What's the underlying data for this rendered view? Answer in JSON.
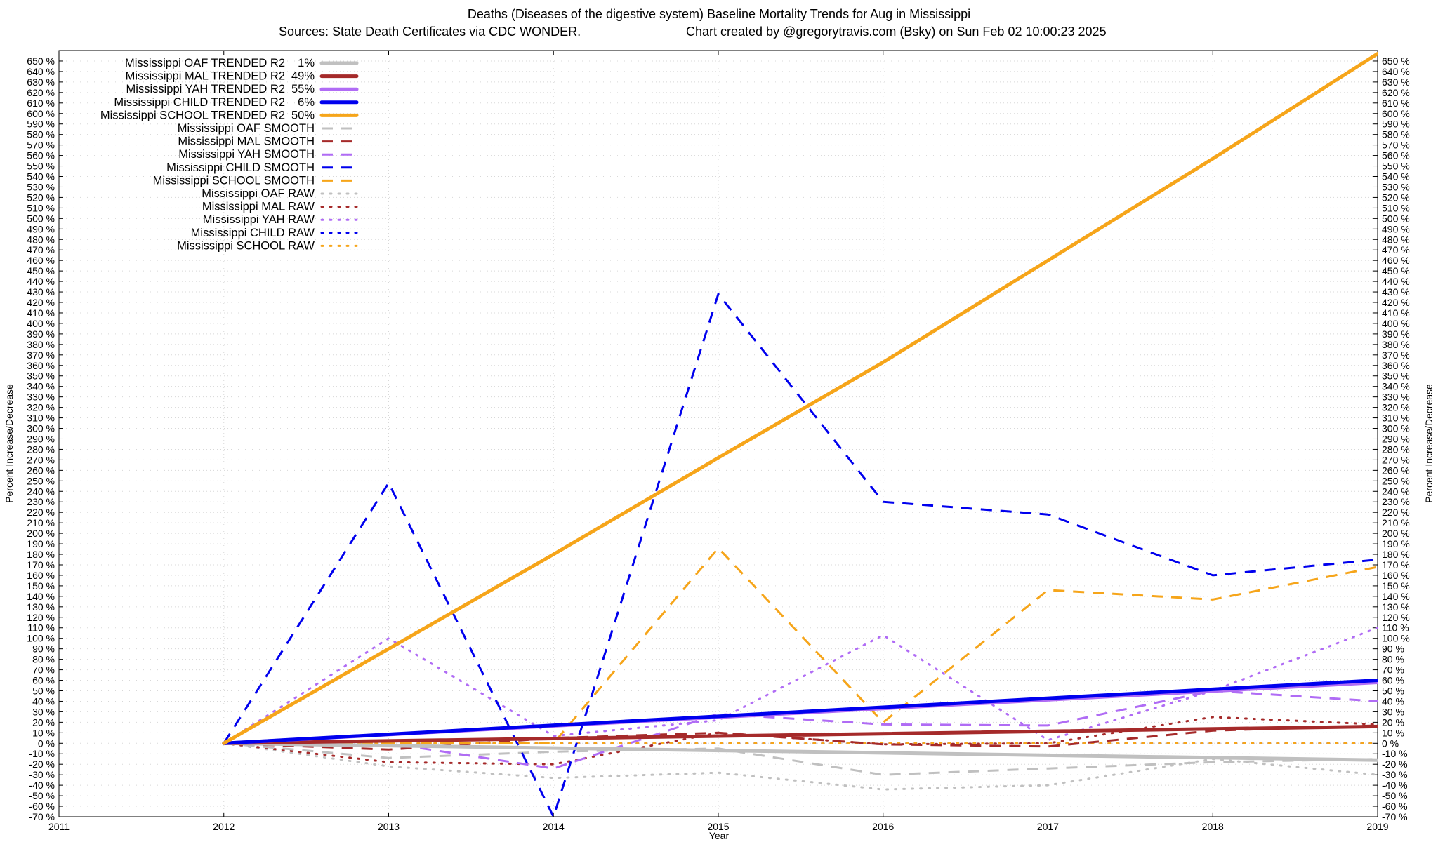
{
  "title_line1": "Deaths (Diseases of the digestive system)  Baseline Mortality Trends for Aug in Mississippi",
  "title_line2_left": "Sources: State Death Certificates via CDC WONDER.",
  "title_line2_right": "Chart created by @gregorytravis.com (Bsky) on Sun Feb 02 10:00:23 2025",
  "chart_data": {
    "type": "line",
    "xlabel": "Year",
    "ylabel_left": "Percent Increase/Decrease",
    "ylabel_right": "Percent Increase/Decrease",
    "xlim": [
      2011,
      2019
    ],
    "ylim": [
      -70,
      660
    ],
    "x_ticks": [
      "2011",
      "2012",
      "2013",
      "2014",
      "2015",
      "2016",
      "2017",
      "2018",
      "2019"
    ],
    "y_ticks": [
      "650 %",
      "640 %",
      "630 %",
      "620 %",
      "610 %",
      "600 %",
      "590 %",
      "580 %",
      "570 %",
      "560 %",
      "550 %",
      "540 %",
      "530 %",
      "520 %",
      "510 %",
      "500 %",
      "490 %",
      "480 %",
      "470 %",
      "460 %",
      "450 %",
      "440 %",
      "430 %",
      "420 %",
      "410 %",
      "400 %",
      "390 %",
      "380 %",
      "370 %",
      "360 %",
      "350 %",
      "340 %",
      "330 %",
      "320 %",
      "310 %",
      "300 %",
      "290 %",
      "280 %",
      "270 %",
      "260 %",
      "250 %",
      "240 %",
      "230 %",
      "220 %",
      "210 %",
      "200 %",
      "190 %",
      "180 %",
      "170 %",
      "160 %",
      "150 %",
      "140 %",
      "130 %",
      "120 %",
      "110 %",
      "100 %",
      "90 %",
      "80 %",
      "70 %",
      "60 %",
      "50 %",
      "40 %",
      "30 %",
      "20 %",
      "10 %",
      "0 %",
      "-10 %",
      "-20 %",
      "-30 %",
      "-40 %",
      "-50 %",
      "-60 %",
      "-70 %"
    ],
    "grid": true,
    "legend_position": "top-left",
    "colors": {
      "OAF": "#c0c0c0",
      "MAL": "#a52a2a",
      "YAH": "#b06cf5",
      "CHILD": "#0000ee",
      "SCHOOL": "#f6a51a"
    },
    "series": [
      {
        "name": "Mississippi OAF TRENDED R2",
        "r2": "1%",
        "group": "OAF",
        "style": "solid",
        "x": [
          2012,
          2019
        ],
        "y": [
          0,
          -16
        ]
      },
      {
        "name": "Mississippi MAL TRENDED R2",
        "r2": "49%",
        "group": "MAL",
        "style": "solid",
        "x": [
          2012,
          2019
        ],
        "y": [
          0,
          16
        ]
      },
      {
        "name": "Mississippi YAH TRENDED R2",
        "r2": "55%",
        "group": "YAH",
        "style": "solid",
        "x": [
          2012,
          2019
        ],
        "y": [
          0,
          58
        ]
      },
      {
        "name": "Mississippi CHILD TRENDED R2",
        "r2": "6%",
        "group": "CHILD",
        "style": "solid",
        "x": [
          2012,
          2019
        ],
        "y": [
          0,
          60
        ]
      },
      {
        "name": "Mississippi SCHOOL TRENDED R2",
        "r2": "50%",
        "group": "SCHOOL",
        "style": "solid",
        "x": [
          2012,
          2013,
          2014,
          2015,
          2016,
          2017,
          2018,
          2019
        ],
        "y": [
          0,
          90,
          180,
          272,
          363,
          460,
          557,
          657
        ]
      },
      {
        "name": "Mississippi OAF SMOOTH",
        "group": "OAF",
        "style": "dashed",
        "x": [
          2012,
          2013,
          2014,
          2015,
          2016,
          2017,
          2018,
          2019
        ],
        "y": [
          0,
          -14,
          -8,
          -5,
          -30,
          -24,
          -18,
          -15
        ]
      },
      {
        "name": "Mississippi MAL SMOOTH",
        "group": "MAL",
        "style": "dashed",
        "x": [
          2012,
          2013,
          2014,
          2015,
          2016,
          2017,
          2018,
          2019
        ],
        "y": [
          0,
          -6,
          5,
          10,
          -1,
          -3,
          12,
          17
        ]
      },
      {
        "name": "Mississippi YAH SMOOTH",
        "group": "YAH",
        "style": "dashed",
        "x": [
          2012,
          2013,
          2014,
          2015,
          2016,
          2017,
          2018,
          2019
        ],
        "y": [
          0,
          0,
          -24,
          28,
          18,
          17,
          50,
          40
        ]
      },
      {
        "name": "Mississippi CHILD SMOOTH",
        "group": "CHILD",
        "style": "dashed",
        "x": [
          2012,
          2013,
          2014,
          2015,
          2016,
          2017,
          2018,
          2019
        ],
        "y": [
          0,
          248,
          -70,
          428,
          230,
          218,
          160,
          175
        ]
      },
      {
        "name": "Mississippi SCHOOL SMOOTH",
        "group": "SCHOOL",
        "style": "dashed",
        "x": [
          2012,
          2013,
          2014,
          2015,
          2016,
          2017,
          2018,
          2019
        ],
        "y": [
          0,
          0,
          0,
          186,
          20,
          146,
          137,
          168
        ]
      },
      {
        "name": "Mississippi OAF RAW",
        "group": "OAF",
        "style": "dotted",
        "x": [
          2012,
          2013,
          2014,
          2015,
          2016,
          2017,
          2018,
          2019
        ],
        "y": [
          0,
          -22,
          -33,
          -28,
          -44,
          -40,
          -15,
          -30
        ]
      },
      {
        "name": "Mississippi MAL RAW",
        "group": "MAL",
        "style": "dotted",
        "x": [
          2012,
          2013,
          2014,
          2015,
          2016,
          2017,
          2018,
          2019
        ],
        "y": [
          0,
          -18,
          -20,
          10,
          -1,
          0,
          25,
          18
        ]
      },
      {
        "name": "Mississippi YAH RAW",
        "group": "YAH",
        "style": "dotted",
        "x": [
          2012,
          2013,
          2014,
          2015,
          2016,
          2017,
          2018,
          2019
        ],
        "y": [
          0,
          100,
          7,
          22,
          103,
          3,
          50,
          110
        ]
      },
      {
        "name": "Mississippi CHILD RAW",
        "group": "CHILD",
        "style": "dotted",
        "x": [
          2012,
          2013,
          2014,
          2015,
          2016,
          2017,
          2018,
          2019
        ],
        "y": [
          0,
          0,
          0,
          0,
          0,
          0,
          0,
          0
        ]
      },
      {
        "name": "Mississippi SCHOOL RAW",
        "group": "SCHOOL",
        "style": "dotted",
        "x": [
          2012,
          2013,
          2014,
          2015,
          2016,
          2017,
          2018,
          2019
        ],
        "y": [
          0,
          0,
          0,
          0,
          0,
          0,
          0,
          0
        ]
      }
    ]
  }
}
